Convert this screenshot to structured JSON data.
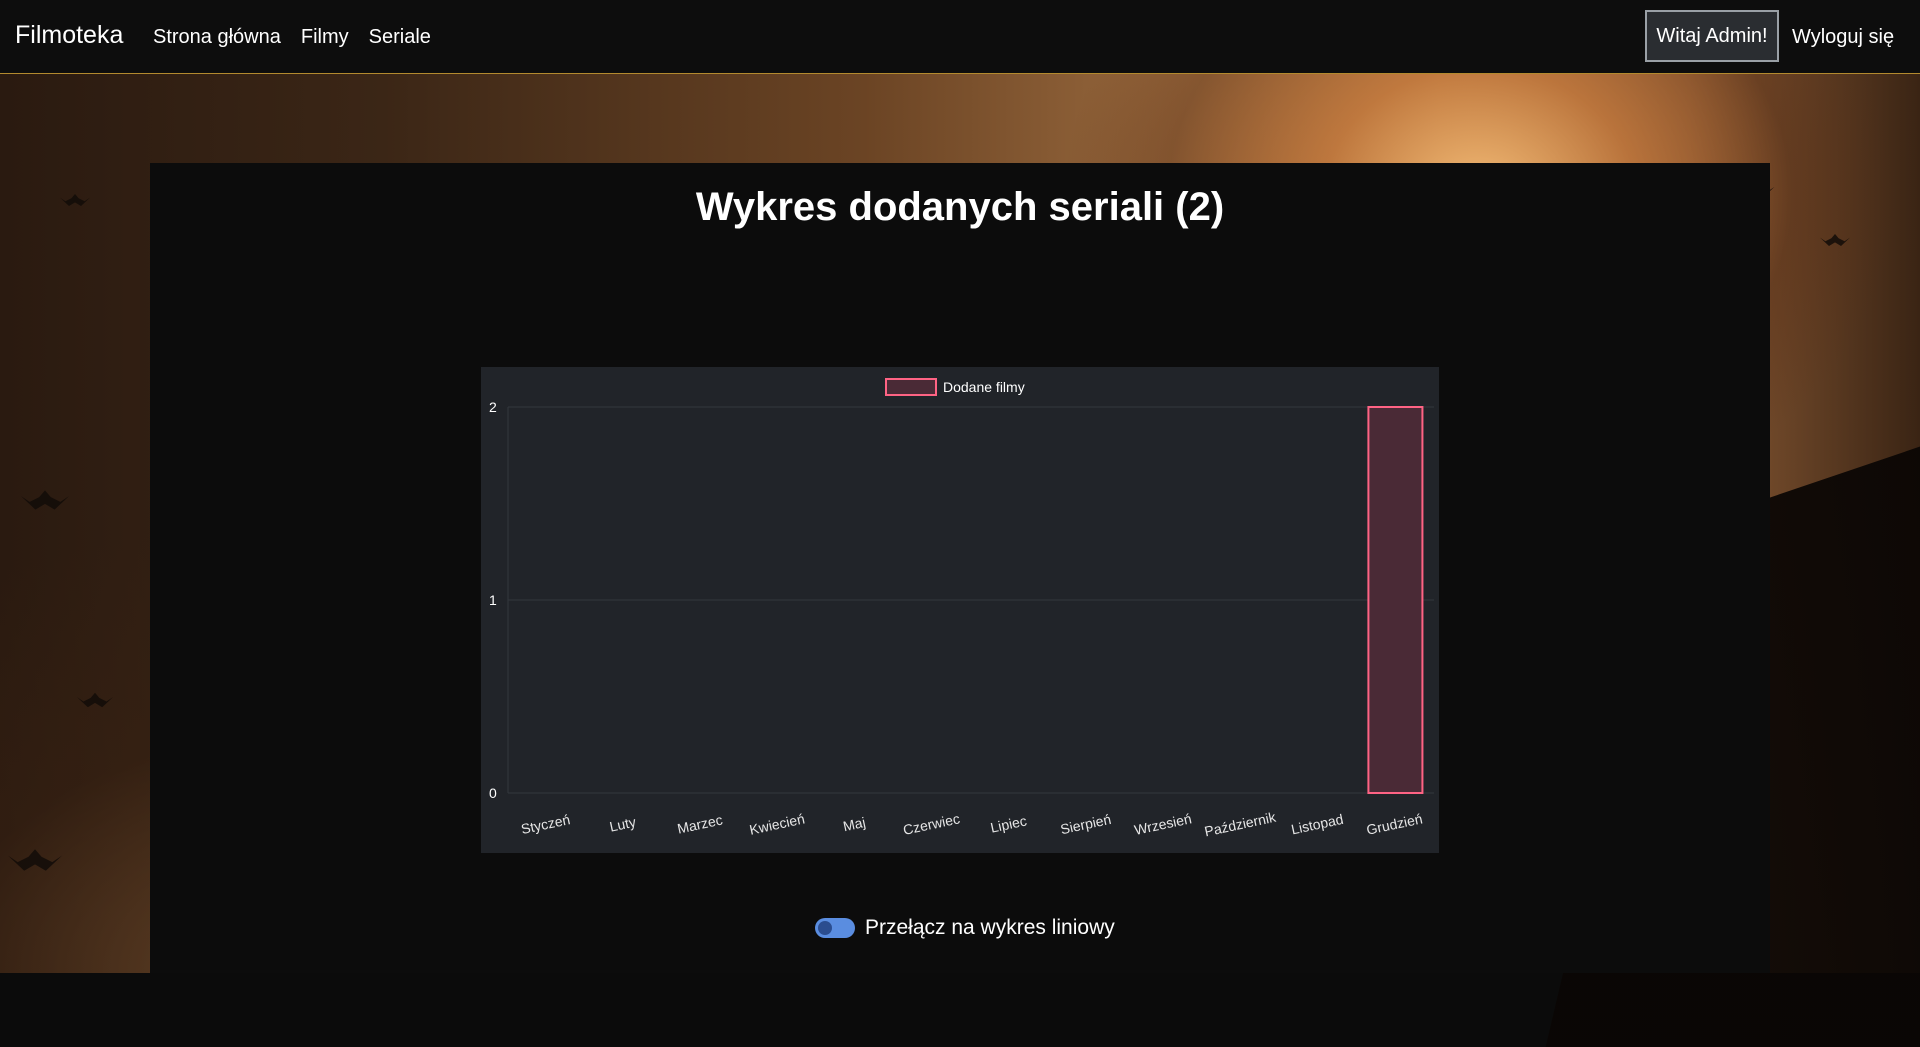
{
  "navbar": {
    "brand": "Filmoteka",
    "links": [
      {
        "label": "Strona główna"
      },
      {
        "label": "Filmy"
      },
      {
        "label": "Seriale"
      }
    ],
    "welcome": "Witaj Admin!",
    "logout": "Wyloguj się"
  },
  "page": {
    "title": "Wykres dodanych seriali (2)",
    "toggle_label": "Przełącz na wykres liniowy"
  },
  "chart_data": {
    "type": "bar",
    "categories": [
      "Styczeń",
      "Luty",
      "Marzec",
      "Kwiecień",
      "Maj",
      "Czerwiec",
      "Lipiec",
      "Sierpień",
      "Wrzesień",
      "Październik",
      "Listopad",
      "Grudzień"
    ],
    "series": [
      {
        "name": "Dodane filmy",
        "values": [
          0,
          0,
          0,
          0,
          0,
          0,
          0,
          0,
          0,
          0,
          0,
          2
        ],
        "color": "#ff6384"
      }
    ],
    "yticks": [
      0,
      1,
      2
    ],
    "ylim": [
      0,
      2
    ],
    "legend": "top-center",
    "grid": true
  },
  "colors": {
    "accent_border": "#b38a2e",
    "chart_bg": "#212429",
    "bar_fill": "#4a2a36",
    "bar_stroke": "#ff6384"
  }
}
